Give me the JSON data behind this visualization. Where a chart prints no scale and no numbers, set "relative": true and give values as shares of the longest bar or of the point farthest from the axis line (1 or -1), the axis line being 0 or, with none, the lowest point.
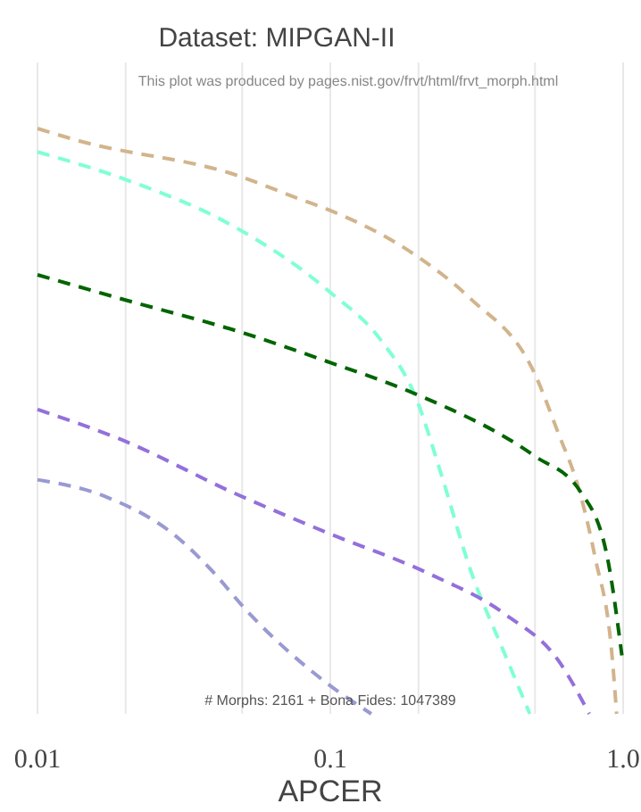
{
  "chart_data": {
    "type": "line",
    "title": "Dataset: MIPGAN-II",
    "xlabel": "APCER",
    "annotations": [
      "This plot was produced by pages.nist.gov/frvt/html/frvt_morph.html",
      "# Morphs: 2161 + Bona Fides: 1047389"
    ],
    "relative": true,
    "log": "x",
    "xlim": [
      0.01,
      1.0
    ],
    "xticks": [
      0.01,
      {
        "value": 0.02,
        "label": null
      },
      {
        "value": 0.05,
        "label": null
      },
      0.1,
      {
        "value": 0.2,
        "label": null
      },
      {
        "value": 0.5,
        "label": null
      },
      {
        "value": 1,
        "label": "1.0"
      }
    ],
    "grid": "x",
    "line_style": "dashed",
    "marker": "none",
    "series": [
      {
        "color": "#d2b48c",
        "x": [
          0.01,
          0.0136,
          0.048,
          0.078,
          0.1,
          0.2,
          0.3,
          0.5,
          0.6,
          0.7,
          0.8,
          0.92,
          0.95
        ],
        "values": [
          1,
          0.98,
          0.92,
          0.88,
          0.86,
          0.78,
          0.71,
          0.58,
          0.48,
          0.39,
          0.27,
          0.09,
          0
        ]
      },
      {
        "color": "#7fffd4",
        "x": [
          0.01,
          0.0207,
          0.044,
          0.1,
          0.148,
          0.196,
          0.239,
          0.299,
          0.396,
          0.48
        ],
        "values": [
          0.96,
          0.91,
          0.84,
          0.72,
          0.64,
          0.54,
          0.41,
          0.25,
          0.1,
          0
        ]
      },
      {
        "color": "#006400",
        "x": [
          0.01,
          0.019,
          0.051,
          0.1,
          0.188,
          0.5,
          0.714,
          0.881,
          0.99
        ],
        "values": [
          0.75,
          0.71,
          0.65,
          0.6,
          0.55,
          0.44,
          0.38,
          0.27,
          0.1
        ]
      },
      {
        "color": "#9370db",
        "x": [
          0.01,
          0.019,
          0.048,
          0.097,
          0.216,
          0.396,
          0.603,
          0.766
        ],
        "values": [
          0.52,
          0.47,
          0.375,
          0.31,
          0.24,
          0.17,
          0.09,
          0
        ]
      },
      {
        "color": "#9a9ad2",
        "x": [
          0.01,
          0.0173,
          0.0303,
          0.0385,
          0.0532,
          0.093,
          0.138
        ],
        "values": [
          0.4,
          0.37,
          0.3,
          0.25,
          0.17,
          0.06,
          0
        ]
      }
    ]
  }
}
